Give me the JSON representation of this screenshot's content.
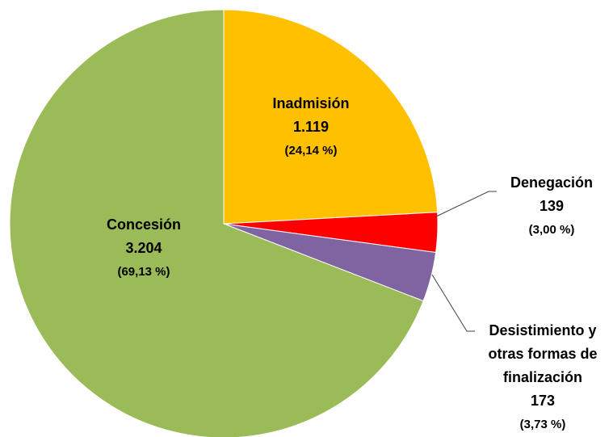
{
  "chart_data": {
    "type": "pie",
    "categories": [
      "Inadmisión",
      "Denegación",
      "Desistimiento y otras formas de finalización",
      "Concesión"
    ],
    "values": [
      1119,
      139,
      173,
      3204
    ],
    "value_labels": [
      "1.119",
      "139",
      "173",
      "3.204"
    ],
    "percentages": [
      24.14,
      3.0,
      3.73,
      69.13
    ],
    "percentage_labels": [
      "(24,14 %)",
      "(3,00 %)",
      "(3,73 %)",
      "(69,13 %)"
    ],
    "colors": [
      "#FFC000",
      "#FF0000",
      "#8064A2",
      "#9BBB59"
    ]
  }
}
